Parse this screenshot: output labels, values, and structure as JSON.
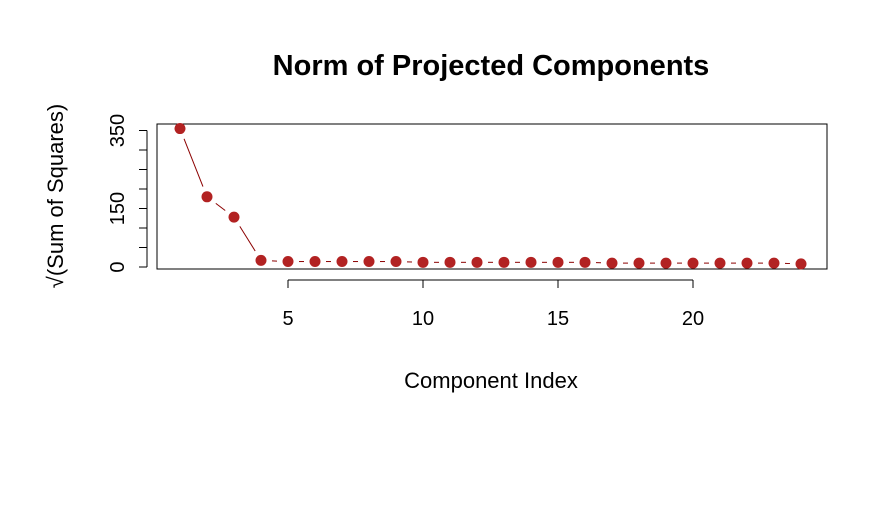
{
  "chart_data": {
    "type": "scatter",
    "title": "Norm of Projected Components",
    "xlabel": "Component Index",
    "ylabel": "√(Sum of Squares)",
    "xlim": [
      1,
      24
    ],
    "ylim": [
      0,
      360
    ],
    "x_ticks": [
      5,
      10,
      15,
      20
    ],
    "y_ticks": [
      0,
      50,
      100,
      150,
      200,
      250,
      300,
      350
    ],
    "y_tick_labels": [
      "0",
      "150",
      "350"
    ],
    "y_tick_label_values": [
      0,
      150,
      350
    ],
    "grid": false,
    "legend": "none",
    "point_color": "#b22222",
    "line_color": "#8b0000",
    "line_style": "connects points with gaps around each point",
    "series": [
      {
        "x": [
          1,
          2,
          3,
          4,
          5,
          6,
          7,
          8,
          9,
          10,
          11,
          12,
          13,
          14,
          15,
          16,
          17,
          18,
          19,
          20,
          21,
          22,
          23,
          24
        ],
        "values": [
          355,
          180,
          128,
          17,
          14,
          14,
          14,
          14,
          14,
          12,
          12,
          12,
          12,
          12,
          12,
          12,
          10,
          10,
          10,
          10,
          10,
          10,
          10,
          8
        ]
      }
    ]
  }
}
